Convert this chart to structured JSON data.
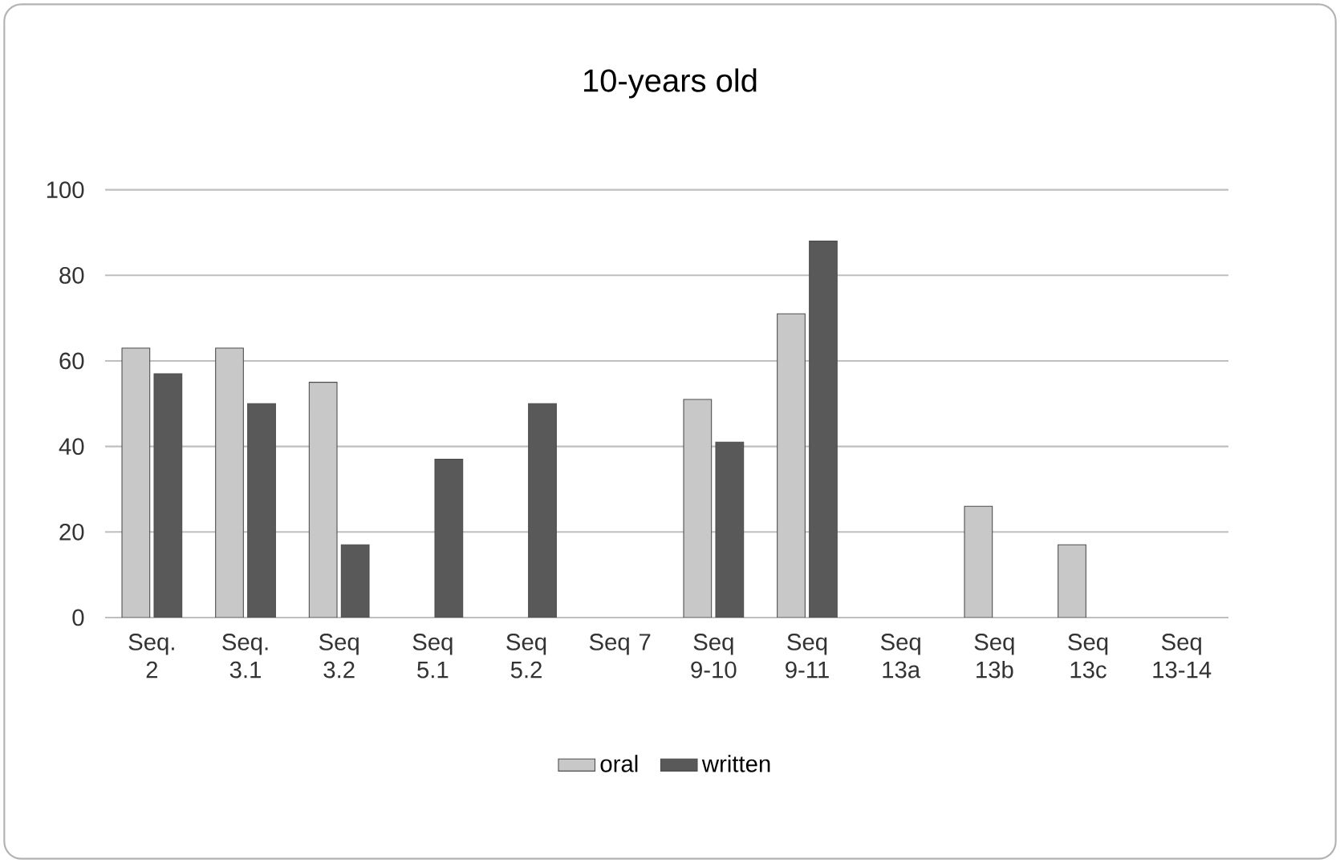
{
  "chart_data": {
    "type": "bar",
    "title": "10-years old",
    "categories": [
      "Seq. 2",
      "Seq. 3.1",
      "Seq 3.2",
      "Seq 5.1",
      "Seq 5.2",
      "Seq 7",
      "Seq 9-10",
      "Seq 9-11",
      "Seq 13a",
      "Seq 13b",
      "Seq 13c",
      "Seq 13-14"
    ],
    "series": [
      {
        "name": "oral",
        "color": "#c8c8c8",
        "values": [
          63,
          63,
          55,
          null,
          null,
          null,
          51,
          71,
          null,
          26,
          17,
          null
        ]
      },
      {
        "name": "written",
        "color": "#595959",
        "values": [
          57,
          50,
          17,
          37,
          50,
          null,
          41,
          88,
          null,
          null,
          null,
          null
        ]
      }
    ],
    "ylim": [
      0,
      100
    ],
    "yticks": [
      0,
      20,
      40,
      60,
      80,
      100
    ],
    "grid": "y",
    "legend": "bottom"
  }
}
